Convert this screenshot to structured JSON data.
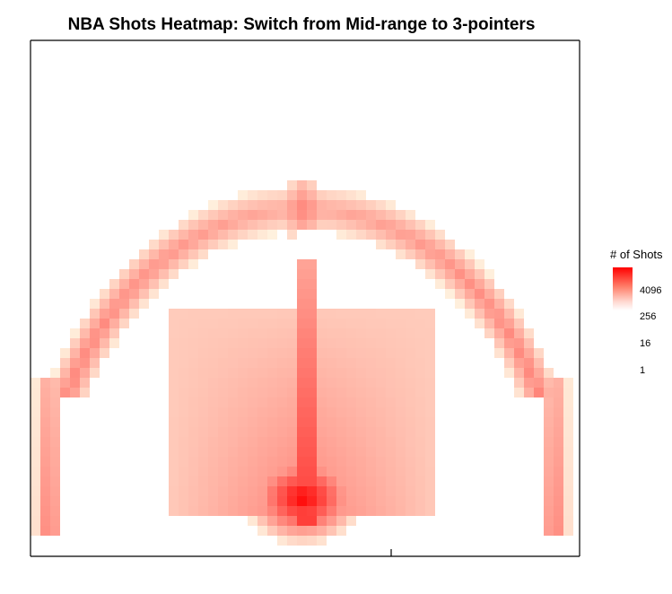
{
  "chart_data": {
    "type": "heatmap",
    "title": "NBA Shots Heatmap: Switch from Mid-range to 3-pointers",
    "xlabel": "",
    "ylabel": "",
    "legend": {
      "title": "# of Shots",
      "position": "right",
      "scale": "log",
      "breaks": [
        4096,
        256,
        16,
        1
      ],
      "labels": [
        "4096",
        "256",
        "16",
        "1"
      ],
      "color_low": "#ffffff",
      "color_high": "#ff0000"
    },
    "regions": [
      {
        "name": "three-point arc",
        "relative_intensity": 0.4
      },
      {
        "name": "left corner three",
        "relative_intensity": 0.45
      },
      {
        "name": "right corner three",
        "relative_intensity": 0.45
      },
      {
        "name": "top of key",
        "relative_intensity": 0.35
      },
      {
        "name": "paint / restricted area",
        "relative_intensity": 1.0
      },
      {
        "name": "mid-range",
        "relative_intensity": 0.12
      }
    ]
  }
}
